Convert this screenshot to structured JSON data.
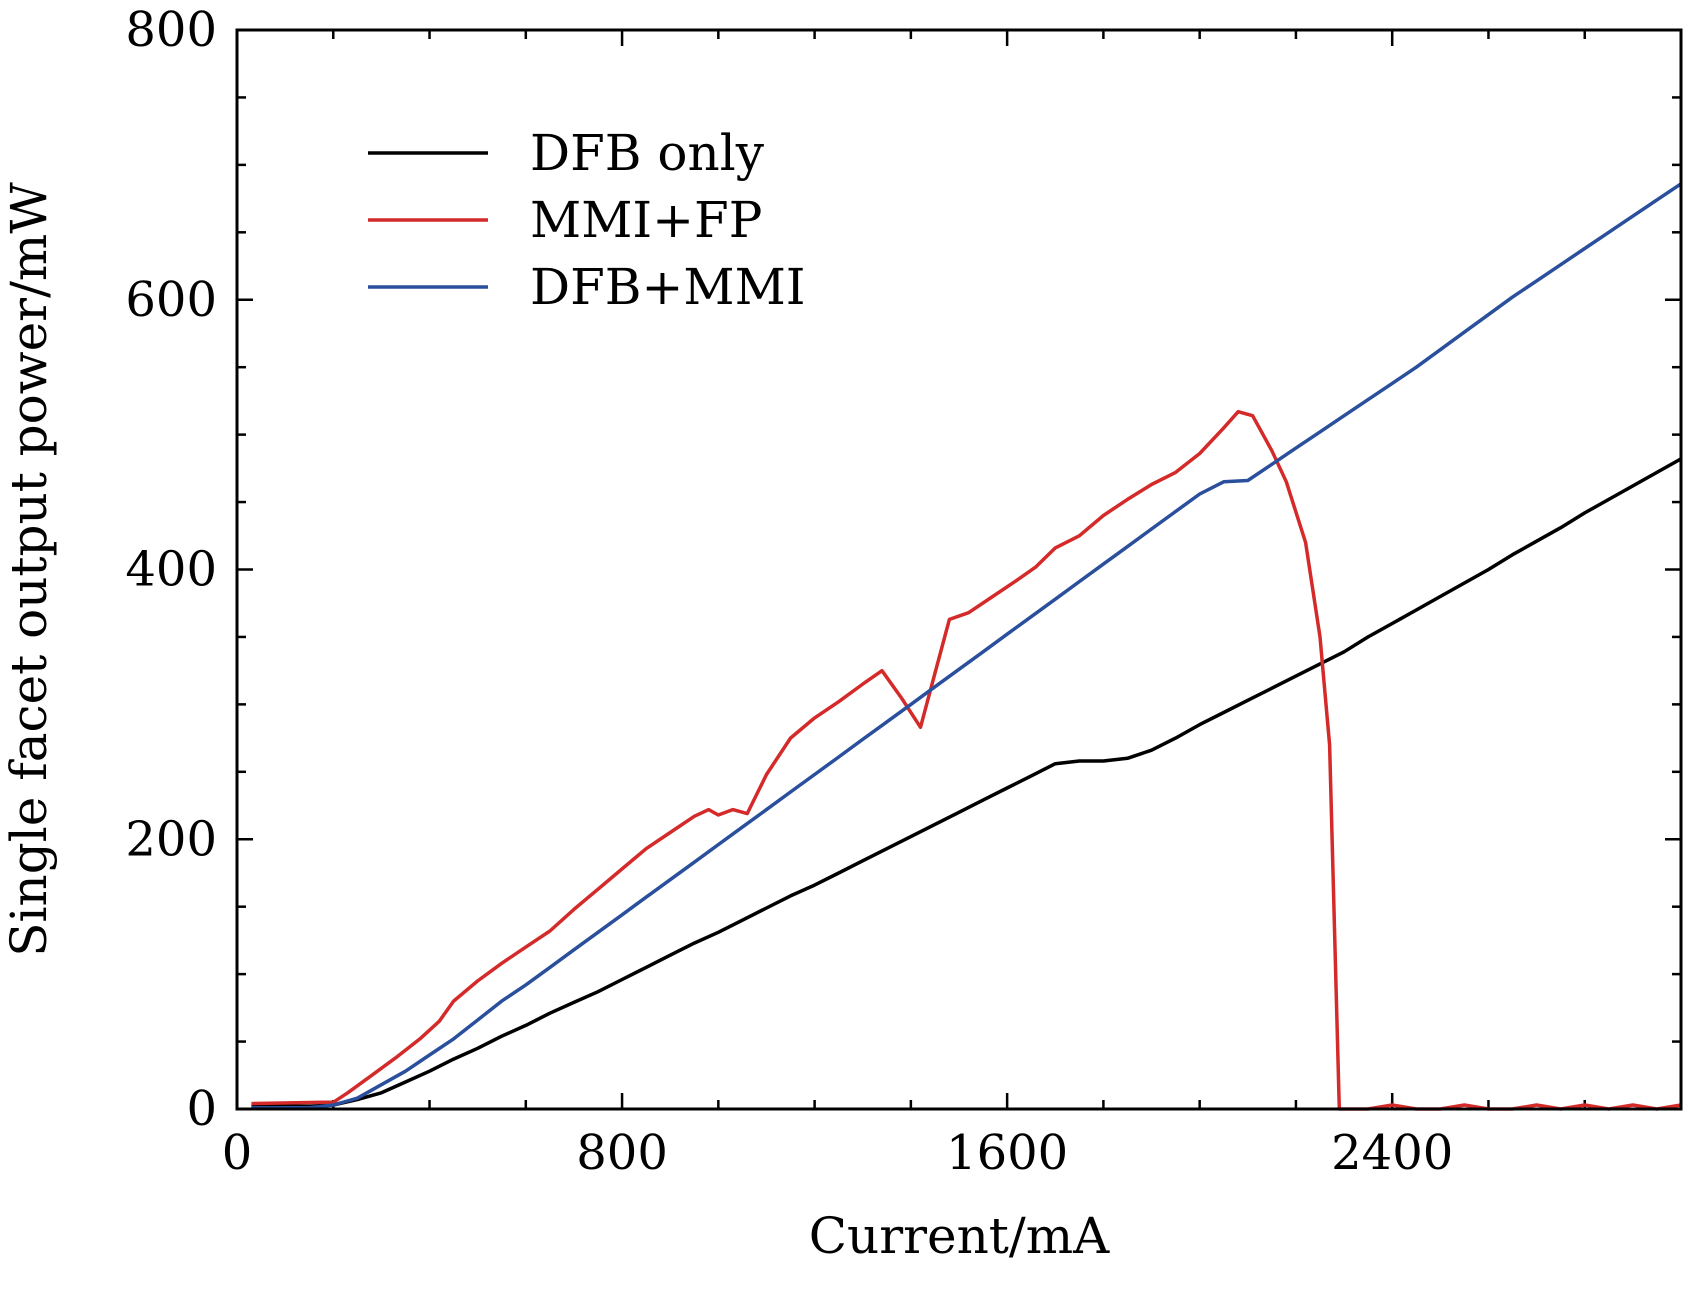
{
  "chart_data": {
    "type": "line",
    "title": "",
    "xlabel": "Current/mA",
    "ylabel": "Single facet output power/mW",
    "xlim": [
      0,
      3000
    ],
    "ylim": [
      0,
      800
    ],
    "xticks": [
      0,
      800,
      1600,
      2400
    ],
    "xtick_labels": [
      "0",
      "800",
      "1600",
      "2400"
    ],
    "yticks": [
      0,
      200,
      400,
      600,
      800
    ],
    "ytick_labels": [
      "0",
      "200",
      "400",
      "600",
      "800"
    ],
    "x_minor_step": 200,
    "y_minor_step": 50,
    "grid": false,
    "legend_position": "top-left",
    "series": [
      {
        "name": "DFB only",
        "color": "#000000",
        "points": [
          [
            30,
            2
          ],
          [
            100,
            2
          ],
          [
            150,
            2
          ],
          [
            200,
            3
          ],
          [
            250,
            7
          ],
          [
            300,
            12
          ],
          [
            350,
            20
          ],
          [
            400,
            28
          ],
          [
            450,
            37
          ],
          [
            500,
            45
          ],
          [
            550,
            54
          ],
          [
            600,
            62
          ],
          [
            650,
            71
          ],
          [
            700,
            79
          ],
          [
            750,
            87
          ],
          [
            800,
            95
          ],
          [
            850,
            103
          ],
          [
            900,
            111
          ],
          [
            950,
            119
          ],
          [
            1000,
            127
          ],
          [
            1050,
            135
          ],
          [
            1100,
            143
          ],
          [
            1150,
            151
          ],
          [
            1200,
            159
          ],
          [
            1250,
            167
          ],
          [
            1300,
            175
          ],
          [
            1350,
            183
          ],
          [
            1400,
            191
          ],
          [
            1450,
            199
          ],
          [
            1500,
            207
          ],
          [
            1550,
            215
          ],
          [
            1600,
            223
          ],
          [
            1650,
            231
          ],
          [
            1700,
            239
          ],
          [
            1750,
            247
          ],
          [
            1800,
            255
          ],
          [
            1850,
            258
          ],
          [
            1900,
            258
          ],
          [
            1950,
            259
          ],
          [
            2000,
            262
          ],
          [
            2050,
            268
          ],
          [
            2100,
            276
          ],
          [
            2150,
            284
          ],
          [
            2200,
            292
          ],
          [
            2250,
            300
          ],
          [
            2300,
            308
          ],
          [
            2350,
            316
          ],
          [
            2400,
            324
          ],
          [
            2450,
            332
          ],
          [
            2500,
            340
          ],
          [
            2550,
            350
          ],
          [
            2600,
            360
          ],
          [
            2650,
            370
          ],
          [
            2700,
            380
          ],
          [
            2750,
            390
          ],
          [
            2800,
            400
          ],
          [
            2850,
            410
          ],
          [
            2900,
            420
          ],
          [
            2950,
            430
          ],
          [
            3000,
            440
          ],
          [
            2500,
            340
          ]
        ]
      },
      {
        "name": "MMI+FP",
        "color": "#d42a2a",
        "points": []
      },
      {
        "name": "DFB+MMI",
        "color": "#2a4f9c",
        "points": []
      }
    ]
  }
}
